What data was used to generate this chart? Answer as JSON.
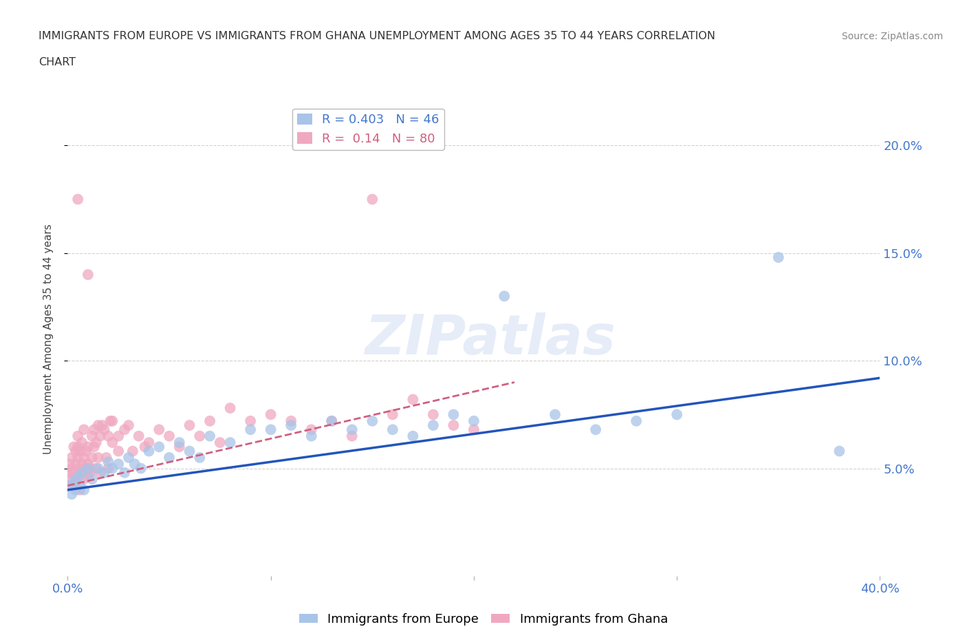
{
  "title_line1": "IMMIGRANTS FROM EUROPE VS IMMIGRANTS FROM GHANA UNEMPLOYMENT AMONG AGES 35 TO 44 YEARS CORRELATION",
  "title_line2": "CHART",
  "source": "Source: ZipAtlas.com",
  "ylabel": "Unemployment Among Ages 35 to 44 years",
  "xlim": [
    0.0,
    0.4
  ],
  "ylim": [
    0.0,
    0.22
  ],
  "europe_color": "#a8c4e8",
  "ghana_color": "#f0a8c0",
  "europe_line_color": "#2255bb",
  "ghana_line_color": "#d06080",
  "europe_R": 0.403,
  "europe_N": 46,
  "ghana_R": 0.14,
  "ghana_N": 80,
  "europe_scatter_x": [
    0.001,
    0.002,
    0.003,
    0.004,
    0.005,
    0.006,
    0.007,
    0.008,
    0.01,
    0.012,
    0.015,
    0.018,
    0.02,
    0.022,
    0.025,
    0.028,
    0.03,
    0.033,
    0.036,
    0.04,
    0.045,
    0.05,
    0.055,
    0.06,
    0.065,
    0.07,
    0.08,
    0.09,
    0.1,
    0.11,
    0.12,
    0.13,
    0.14,
    0.15,
    0.16,
    0.17,
    0.18,
    0.19,
    0.2,
    0.215,
    0.24,
    0.26,
    0.28,
    0.3,
    0.35,
    0.38
  ],
  "europe_scatter_y": [
    0.042,
    0.038,
    0.044,
    0.04,
    0.046,
    0.042,
    0.048,
    0.04,
    0.05,
    0.045,
    0.05,
    0.048,
    0.053,
    0.05,
    0.052,
    0.048,
    0.055,
    0.052,
    0.05,
    0.058,
    0.06,
    0.055,
    0.062,
    0.058,
    0.055,
    0.065,
    0.062,
    0.068,
    0.068,
    0.07,
    0.065,
    0.072,
    0.068,
    0.072,
    0.068,
    0.065,
    0.07,
    0.075,
    0.072,
    0.13,
    0.075,
    0.068,
    0.072,
    0.075,
    0.148,
    0.058
  ],
  "ghana_scatter_x": [
    0.0,
    0.0,
    0.001,
    0.001,
    0.002,
    0.002,
    0.003,
    0.003,
    0.003,
    0.004,
    0.004,
    0.004,
    0.005,
    0.005,
    0.005,
    0.005,
    0.006,
    0.006,
    0.006,
    0.007,
    0.007,
    0.007,
    0.008,
    0.008,
    0.008,
    0.009,
    0.009,
    0.01,
    0.01,
    0.01,
    0.011,
    0.011,
    0.012,
    0.012,
    0.013,
    0.013,
    0.014,
    0.014,
    0.015,
    0.015,
    0.016,
    0.016,
    0.017,
    0.018,
    0.019,
    0.02,
    0.02,
    0.021,
    0.022,
    0.022,
    0.025,
    0.025,
    0.028,
    0.03,
    0.032,
    0.035,
    0.038,
    0.04,
    0.045,
    0.05,
    0.055,
    0.06,
    0.065,
    0.07,
    0.075,
    0.08,
    0.09,
    0.1,
    0.11,
    0.12,
    0.13,
    0.14,
    0.15,
    0.16,
    0.17,
    0.18,
    0.19,
    0.2,
    0.01,
    0.005
  ],
  "ghana_scatter_y": [
    0.048,
    0.042,
    0.052,
    0.045,
    0.05,
    0.055,
    0.048,
    0.06,
    0.042,
    0.052,
    0.058,
    0.044,
    0.055,
    0.06,
    0.046,
    0.065,
    0.05,
    0.058,
    0.04,
    0.052,
    0.062,
    0.048,
    0.055,
    0.068,
    0.045,
    0.058,
    0.05,
    0.052,
    0.046,
    0.06,
    0.05,
    0.048,
    0.065,
    0.055,
    0.06,
    0.068,
    0.05,
    0.062,
    0.07,
    0.055,
    0.065,
    0.048,
    0.07,
    0.068,
    0.055,
    0.065,
    0.05,
    0.072,
    0.062,
    0.072,
    0.065,
    0.058,
    0.068,
    0.07,
    0.058,
    0.065,
    0.06,
    0.062,
    0.068,
    0.065,
    0.06,
    0.07,
    0.065,
    0.072,
    0.062,
    0.078,
    0.072,
    0.075,
    0.072,
    0.068,
    0.072,
    0.065,
    0.175,
    0.075,
    0.082,
    0.075,
    0.07,
    0.068,
    0.14,
    0.175
  ],
  "watermark_text": "ZIPatlas",
  "background_color": "#ffffff",
  "grid_color": "#cccccc"
}
